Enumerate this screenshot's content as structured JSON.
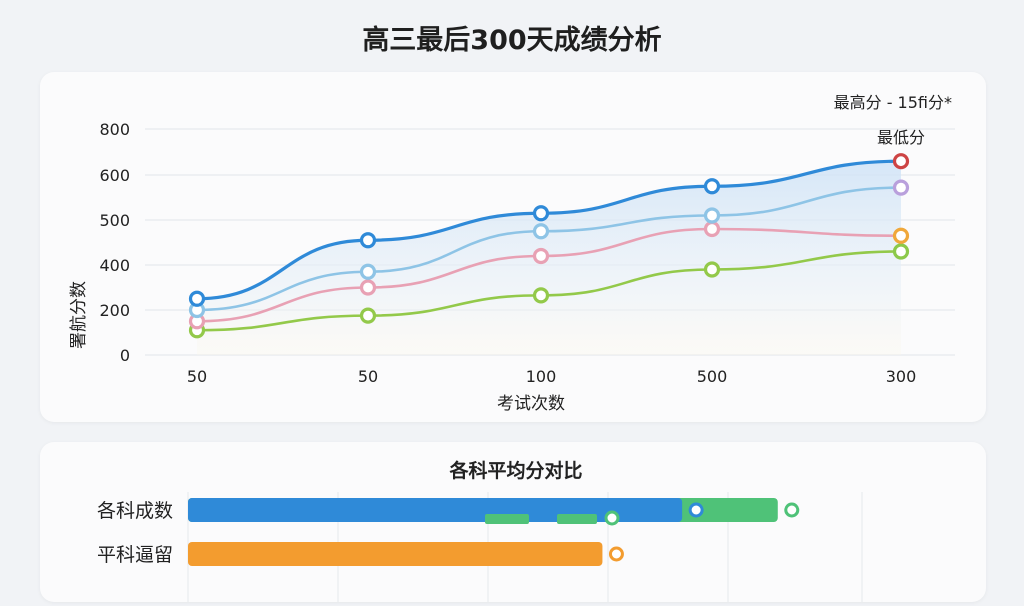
{
  "title": "高三最后300天成绩分析",
  "chart_data": [
    {
      "type": "line",
      "title": "",
      "xlabel": "考试次数",
      "ylabel": "署航分数",
      "categories": [
        "50",
        "50",
        "100",
        "500",
        "300"
      ],
      "yticks": [
        0,
        200,
        400,
        500,
        600,
        800
      ],
      "legend": [
        "最高分 - 15fi分*",
        "最低分"
      ],
      "series": [
        {
          "color": "#2f8ad8",
          "values": [
            250,
            455,
            515,
            575,
            660
          ]
        },
        {
          "color": "#8ec4e6",
          "values": [
            200,
            370,
            475,
            510,
            572
          ]
        },
        {
          "color": "#e8a1b4",
          "values": [
            150,
            300,
            420,
            480,
            465
          ]
        },
        {
          "color": "#93c94a",
          "values": [
            110,
            175,
            265,
            380,
            430
          ]
        }
      ],
      "end_markers": [
        "#cd4444",
        "#b9a0dc",
        "#f0a83b",
        "#8cc94a"
      ]
    },
    {
      "type": "bar",
      "title": "各科平均分对比",
      "categories": [
        "各科成数",
        "平科逼留"
      ],
      "series": [
        {
          "color": "#2f8ad8",
          "values": [
            0.62,
            0
          ]
        },
        {
          "color": "#4fc278",
          "values": [
            0.74,
            0
          ]
        },
        {
          "color": "#f39c2f",
          "values": [
            0,
            0.52
          ]
        }
      ]
    }
  ]
}
